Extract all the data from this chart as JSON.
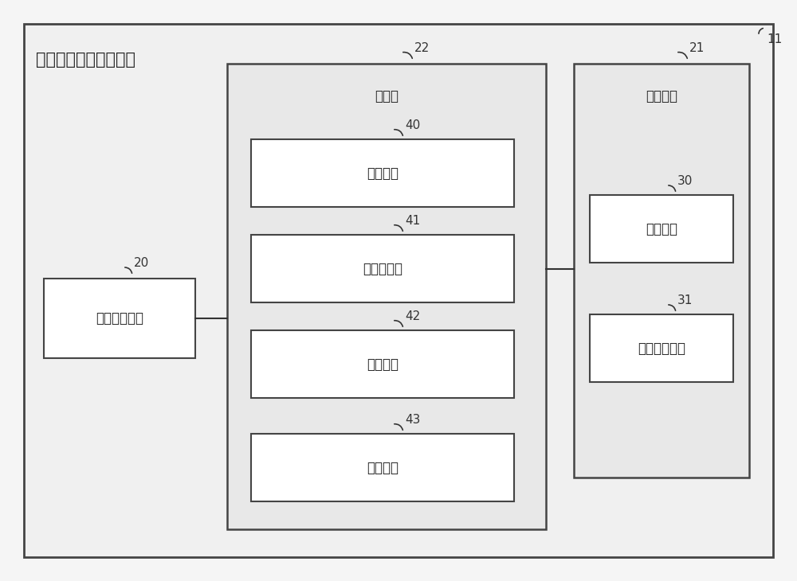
{
  "bg_color": "#f0f0f0",
  "title_outer": "生产调度计划支持设备",
  "label_11": "11",
  "label_22": "22",
  "label_21": "21",
  "label_20": "20",
  "label_40": "40",
  "label_41": "41",
  "label_42": "42",
  "label_43": "43",
  "label_30": "30",
  "label_31": "31",
  "text_controller": "控制器",
  "text_storage": "存储单元",
  "text_comm": "通信接口单元",
  "text_recv": "接收单元",
  "text_display": "显示控制器",
  "text_extract": "提取单元",
  "text_output": "输出单元",
  "text_task": "任务信息",
  "text_project": "项目配置信息",
  "font_size_main": 15,
  "font_size_label": 12,
  "font_size_number": 11
}
